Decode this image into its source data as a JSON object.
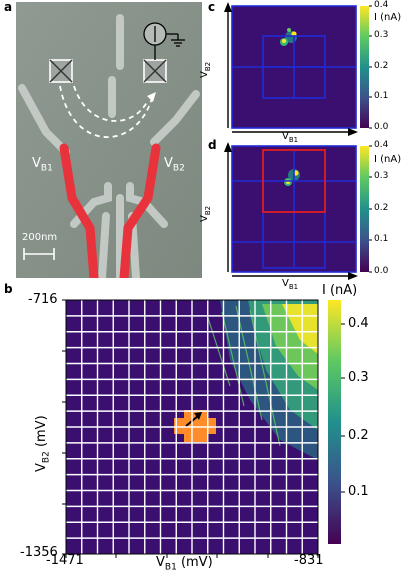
{
  "panels": {
    "a": {
      "label": "a",
      "left_gate": "V",
      "left_gate_sub": "B1",
      "right_gate": "V",
      "right_gate_sub": "B2",
      "scalebar": "200nm"
    },
    "b": {
      "label": "b",
      "y_tick_top": "-716",
      "y_tick_bottom": "-1356",
      "x_tick_left": "-1471",
      "x_tick_right": "-831",
      "ylabel": "V",
      "ylabel_sub": "B2",
      "ylabel_unit": " (mV)",
      "xlabel": "V",
      "xlabel_sub": "B1",
      "xlabel_unit": " (mV)",
      "colorbar_title": "I (nA)",
      "colorbar_ticks": [
        "0.4",
        "0.3",
        "0.2",
        "0.1"
      ]
    },
    "c": {
      "label": "c",
      "ylabel": "V",
      "ylabel_sub": "B2",
      "xlabel": "V",
      "xlabel_sub": "B1",
      "colorbar_title": "I (nA)",
      "colorbar_ticks": [
        "0.4",
        "0.3",
        "0.2",
        "0.1",
        "0.0"
      ]
    },
    "d": {
      "label": "d",
      "ylabel": "V",
      "ylabel_sub": "B2",
      "xlabel": "V",
      "xlabel_sub": "B1",
      "colorbar_title": "I (nA)",
      "colorbar_ticks": [
        "0.4",
        "0.3",
        "0.2",
        "0.1",
        "0.0"
      ]
    }
  },
  "colors": {
    "background_map": "#3b0f70",
    "grid_b": "#ffffff",
    "highlight_b": "#ff8c2a",
    "grid_cd": "#1f2bd6",
    "highlight_d": "#e01b1b",
    "gate_red": "#e8323c",
    "sem_bg": "#8a948e"
  },
  "chart_data": [
    {
      "type": "heatmap",
      "panel": "b",
      "xlim": [
        -1471,
        -831
      ],
      "ylim": [
        -1356,
        -716
      ],
      "xlabel": "VB1 (mV)",
      "ylabel": "VB2 (mV)",
      "colorbar_label": "I (nA)",
      "colorbar_range": [
        0,
        0.43
      ],
      "grid": true
    },
    {
      "type": "heatmap",
      "panel": "c",
      "xlabel": "VB1",
      "ylabel": "VB2",
      "colorbar_label": "I (nA)",
      "colorbar_range": [
        0,
        0.4
      ]
    },
    {
      "type": "heatmap",
      "panel": "d",
      "xlabel": "VB1",
      "ylabel": "VB2",
      "colorbar_label": "I (nA)",
      "colorbar_range": [
        0,
        0.4
      ]
    }
  ]
}
